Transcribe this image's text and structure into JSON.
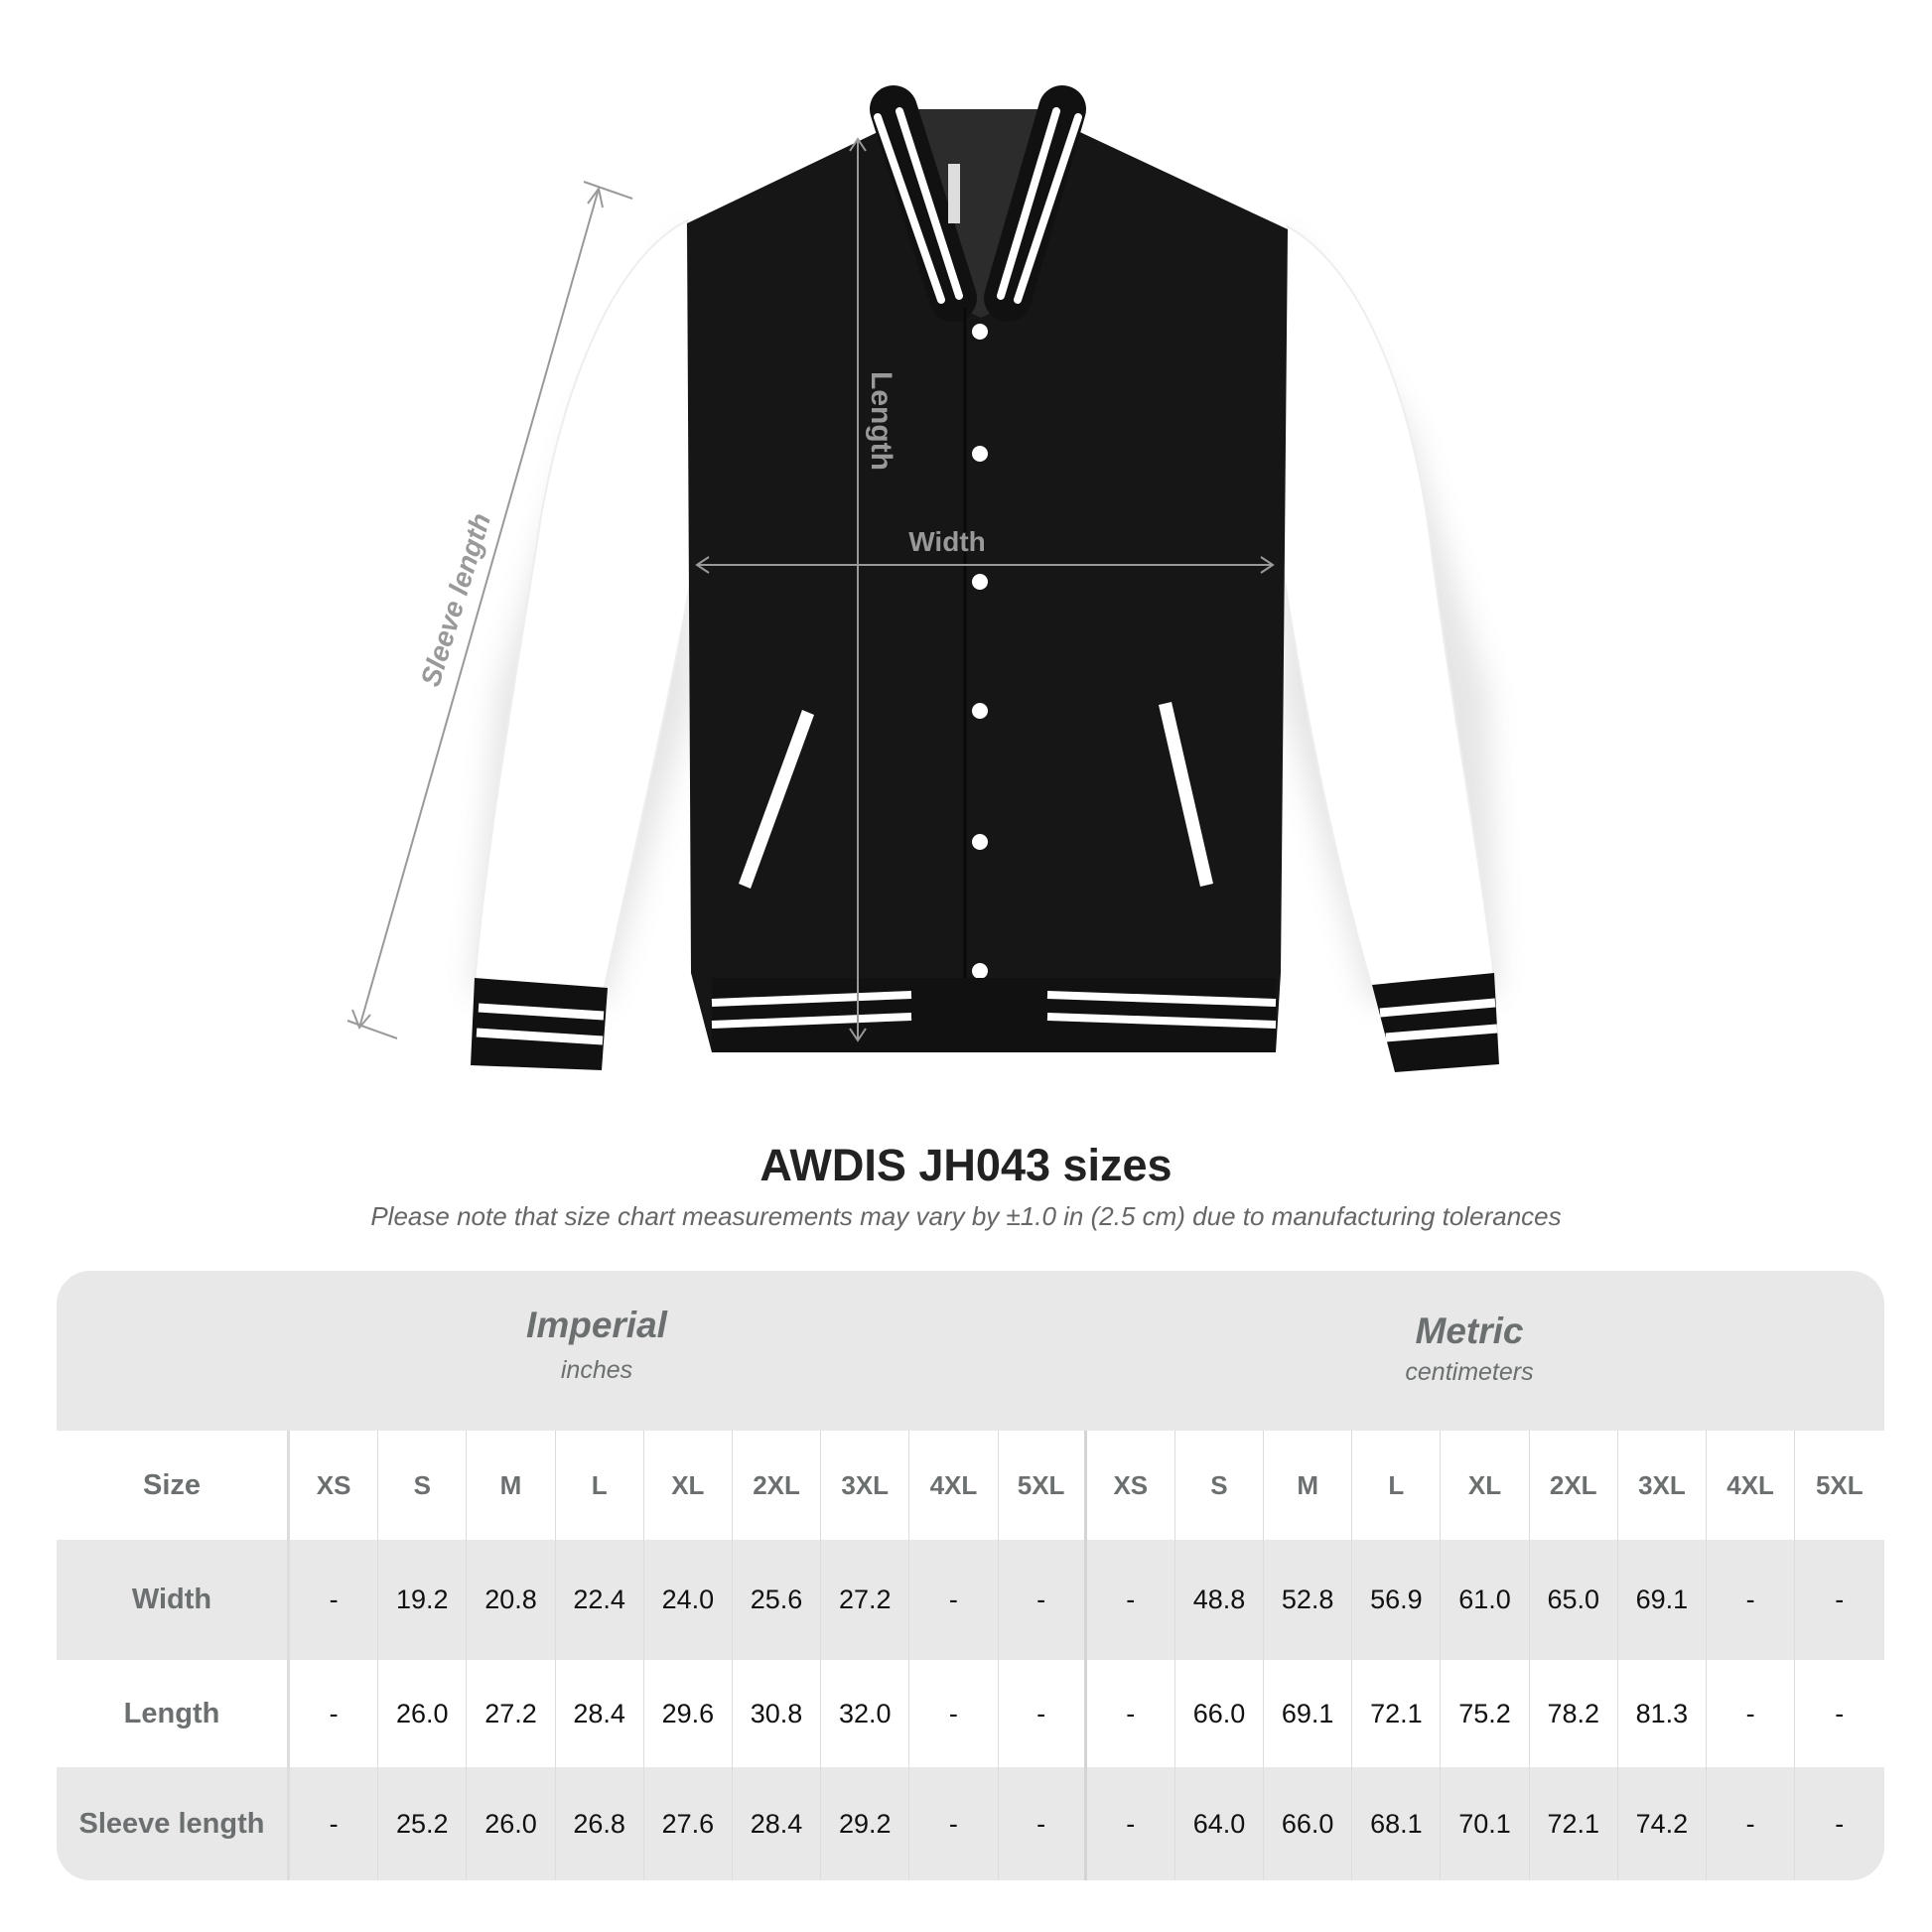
{
  "diagram": {
    "labels": {
      "sleeve_length": "Sleeve length",
      "length": "Length",
      "width": "Width"
    }
  },
  "title": "AWDIS JH043 sizes",
  "note": "Please note that size chart measurements may vary by ±1.0 in (2.5 cm) due to manufacturing tolerances",
  "table": {
    "imperial": {
      "name": "Imperial",
      "unit": "inches"
    },
    "metric": {
      "name": "Metric",
      "unit": "centimeters"
    },
    "size_label": "Size",
    "sizes": [
      "XS",
      "S",
      "M",
      "L",
      "XL",
      "2XL",
      "3XL",
      "4XL",
      "5XL"
    ],
    "rows": [
      {
        "label": "Width",
        "imperial": [
          "-",
          "19.2",
          "20.8",
          "22.4",
          "24.0",
          "25.6",
          "27.2",
          "-",
          "-"
        ],
        "metric": [
          "-",
          "48.8",
          "52.8",
          "56.9",
          "61.0",
          "65.0",
          "69.1",
          "-",
          "-"
        ]
      },
      {
        "label": "Length",
        "imperial": [
          "-",
          "26.0",
          "27.2",
          "28.4",
          "29.6",
          "30.8",
          "32.0",
          "-",
          "-"
        ],
        "metric": [
          "-",
          "66.0",
          "69.1",
          "72.1",
          "75.2",
          "78.2",
          "81.3",
          "-",
          "-"
        ]
      },
      {
        "label": "Sleeve length",
        "imperial": [
          "-",
          "25.2",
          "26.0",
          "26.8",
          "27.6",
          "28.4",
          "29.2",
          "-",
          "-"
        ],
        "metric": [
          "-",
          "64.0",
          "66.0",
          "68.1",
          "70.1",
          "72.1",
          "74.2",
          "-",
          "-"
        ]
      }
    ]
  }
}
